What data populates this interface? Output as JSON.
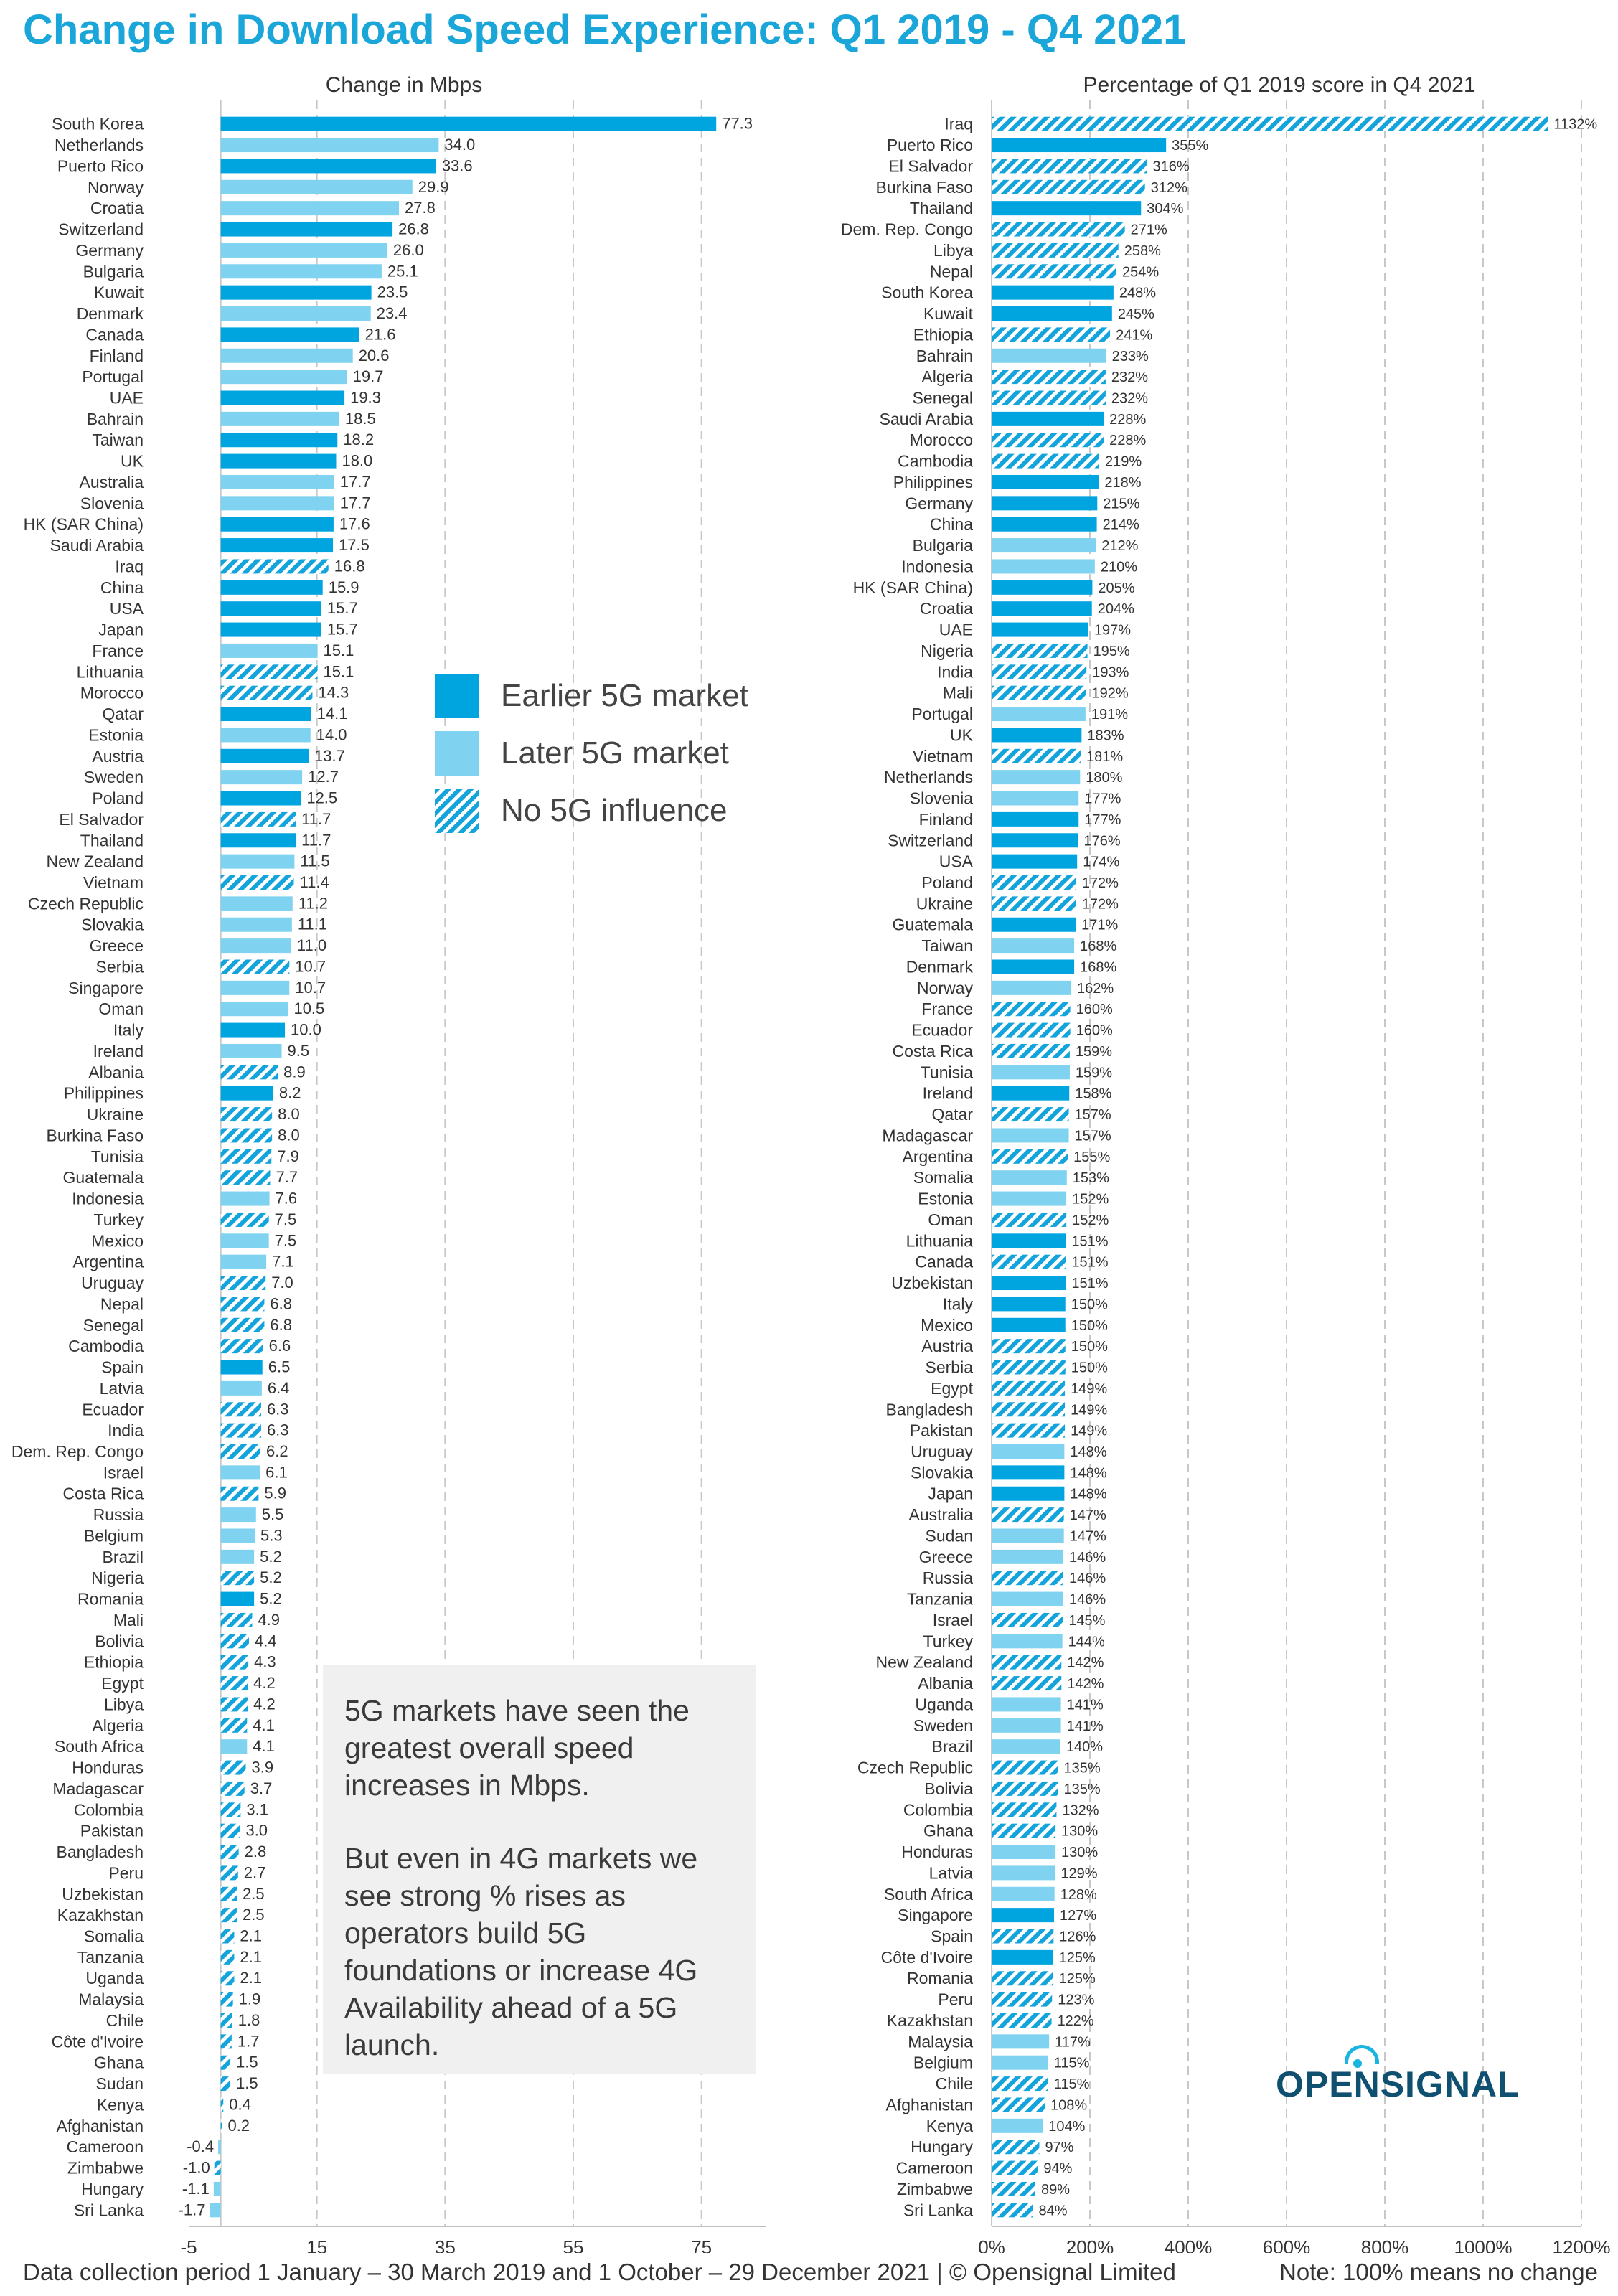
{
  "title": "Change in Download Speed Experience: Q1 2019 - Q4 2021",
  "footer_left": "Data collection period 1 January – 30 March 2019 and 1 October – 29 December 2021 | © Opensignal Limited",
  "footer_right": "Note: 100% means no change",
  "logo_text": "OPENSIGNAL",
  "legend": [
    {
      "key": "E",
      "label": "Earlier 5G market"
    },
    {
      "key": "L",
      "label": "Later 5G market"
    },
    {
      "key": "N",
      "label": "No 5G influence"
    }
  ],
  "colors": {
    "E": "#00a5e0",
    "L": "#7fd3f0",
    "N": "#14a4dc",
    "grid": "#c8c8c8",
    "note_box": "#f0f0f0"
  },
  "note": [
    "5G markets have seen the greatest overall speed increases in Mbps.",
    "But even in 4G markets we see strong % rises as operators build 5G foundations or increase 4G Availability ahead of a 5G launch."
  ],
  "chart_data": [
    {
      "type": "bar",
      "orientation": "horizontal",
      "title": "Change in Mbps",
      "xlim": [
        -5,
        85
      ],
      "ticks": [
        -5,
        15,
        35,
        55,
        75
      ],
      "tick_labels": [
        "-5",
        "15",
        "35",
        "55",
        "75"
      ],
      "grid": true,
      "categories": [
        "South Korea",
        "Netherlands",
        "Puerto Rico",
        "Norway",
        "Croatia",
        "Switzerland",
        "Germany",
        "Bulgaria",
        "Kuwait",
        "Denmark",
        "Canada",
        "Finland",
        "Portugal",
        "UAE",
        "Bahrain",
        "Taiwan",
        "UK",
        "Australia",
        "Slovenia",
        "HK (SAR China)",
        "Saudi Arabia",
        "Iraq",
        "China",
        "USA",
        "Japan",
        "France",
        "Lithuania",
        "Morocco",
        "Qatar",
        "Estonia",
        "Austria",
        "Sweden",
        "Poland",
        "El Salvador",
        "Thailand",
        "New Zealand",
        "Vietnam",
        "Czech Republic",
        "Slovakia",
        "Greece",
        "Serbia",
        "Singapore",
        "Oman",
        "Italy",
        "Ireland",
        "Albania",
        "Philippines",
        "Ukraine",
        "Burkina Faso",
        "Tunisia",
        "Guatemala",
        "Indonesia",
        "Turkey",
        "Mexico",
        "Argentina",
        "Uruguay",
        "Nepal",
        "Senegal",
        "Cambodia",
        "Spain",
        "Latvia",
        "Ecuador",
        "India",
        "Dem. Rep. Congo",
        "Israel",
        "Costa Rica",
        "Russia",
        "Belgium",
        "Brazil",
        "Nigeria",
        "Romania",
        "Mali",
        "Bolivia",
        "Ethiopia",
        "Egypt",
        "Libya",
        "Algeria",
        "South Africa",
        "Honduras",
        "Madagascar",
        "Colombia",
        "Pakistan",
        "Bangladesh",
        "Peru",
        "Uzbekistan",
        "Kazakhstan",
        "Somalia",
        "Tanzania",
        "Uganda",
        "Malaysia",
        "Chile",
        "Côte d'Ivoire",
        "Ghana",
        "Sudan",
        "Kenya",
        "Afghanistan",
        "Cameroon",
        "Zimbabwe",
        "Hungary",
        "Sri Lanka"
      ],
      "values": [
        77.3,
        34.0,
        33.6,
        29.9,
        27.8,
        26.8,
        26.0,
        25.1,
        23.5,
        23.4,
        21.6,
        20.6,
        19.7,
        19.3,
        18.5,
        18.2,
        18.0,
        17.7,
        17.7,
        17.6,
        17.5,
        16.8,
        15.9,
        15.7,
        15.7,
        15.1,
        15.1,
        14.3,
        14.1,
        14.0,
        13.7,
        12.7,
        12.5,
        11.7,
        11.7,
        11.5,
        11.4,
        11.2,
        11.1,
        11.0,
        10.7,
        10.7,
        10.5,
        10.0,
        9.5,
        8.9,
        8.2,
        8.0,
        8.0,
        7.9,
        7.7,
        7.6,
        7.5,
        7.5,
        7.1,
        7.0,
        6.8,
        6.8,
        6.6,
        6.5,
        6.4,
        6.3,
        6.3,
        6.2,
        6.1,
        5.9,
        5.5,
        5.3,
        5.2,
        5.2,
        5.2,
        4.9,
        4.4,
        4.3,
        4.2,
        4.2,
        4.1,
        4.1,
        3.9,
        3.7,
        3.1,
        3.0,
        2.8,
        2.7,
        2.5,
        2.5,
        2.1,
        2.1,
        2.1,
        1.9,
        1.8,
        1.7,
        1.5,
        1.5,
        0.4,
        0.2,
        -0.4,
        -1.0,
        -1.1,
        -1.7
      ],
      "labels": [
        "77.3",
        "34.0",
        "33.6",
        "29.9",
        "27.8",
        "26.8",
        "26.0",
        "25.1",
        "23.5",
        "23.4",
        "21.6",
        "20.6",
        "19.7",
        "19.3",
        "18.5",
        "18.2",
        "18.0",
        "17.7",
        "17.7",
        "17.6",
        "17.5",
        "16.8",
        "15.9",
        "15.7",
        "15.7",
        "15.1",
        "15.1",
        "14.3",
        "14.1",
        "14.0",
        "13.7",
        "12.7",
        "12.5",
        "11.7",
        "11.7",
        "11.5",
        "11.4",
        "11.2",
        "11.1",
        "11.0",
        "10.7",
        "10.7",
        "10.5",
        "10.0",
        "9.5",
        "8.9",
        "8.2",
        "8.0",
        "8.0",
        "7.9",
        "7.7",
        "7.6",
        "7.5",
        "7.5",
        "7.1",
        "7.0",
        "6.8",
        "6.8",
        "6.6",
        "6.5",
        "6.4",
        "6.3",
        "6.3",
        "6.2",
        "6.1",
        "5.9",
        "5.5",
        "5.3",
        "5.2",
        "5.2",
        "5.2",
        "4.9",
        "4.4",
        "4.3",
        "4.2",
        "4.2",
        "4.1",
        "4.1",
        "3.9",
        "3.7",
        "3.1",
        "3.0",
        "2.8",
        "2.7",
        "2.5",
        "2.5",
        "2.1",
        "2.1",
        "2.1",
        "1.9",
        "1.8",
        "1.7",
        "1.5",
        "1.5",
        "0.4",
        "0.2",
        "-0.4",
        "-1.0",
        "-1.1",
        "-1.7"
      ],
      "market_type": "ELELLELLELELLELEELLEENEEELNNELELENELNLLLNLLELNENNNNLNLLNNNNELNNNLNLLLNENNNNNNLNNNNNNNNNNNNNNNNNNLNLL"
    },
    {
      "type": "bar",
      "orientation": "horizontal",
      "title": "Percentage of Q1 2019 score in Q4 2021",
      "xlim": [
        0,
        1200
      ],
      "ticks": [
        0,
        200,
        400,
        600,
        800,
        1000,
        1200
      ],
      "tick_labels": [
        "0%",
        "200%",
        "400%",
        "600%",
        "800%",
        "1000%",
        "1200%"
      ],
      "grid": true,
      "categories": [
        "Iraq",
        "Puerto Rico",
        "El Salvador",
        "Burkina Faso",
        "Thailand",
        "Dem. Rep. Congo",
        "Libya",
        "Nepal",
        "South Korea",
        "Kuwait",
        "Ethiopia",
        "Bahrain",
        "Algeria",
        "Senegal",
        "Saudi Arabia",
        "Morocco",
        "Cambodia",
        "Philippines",
        "Germany",
        "China",
        "Bulgaria",
        "Indonesia",
        "HK (SAR China)",
        "Croatia",
        "UAE",
        "Nigeria",
        "India",
        "Mali",
        "Portugal",
        "UK",
        "Vietnam",
        "Netherlands",
        "Slovenia",
        "Finland",
        "Switzerland",
        "USA",
        "Poland",
        "Ukraine",
        "Guatemala",
        "Taiwan",
        "Denmark",
        "Norway",
        "France",
        "Ecuador",
        "Costa Rica",
        "Tunisia",
        "Ireland",
        "Qatar",
        "Madagascar",
        "Argentina",
        "Somalia",
        "Estonia",
        "Oman",
        "Lithuania",
        "Canada",
        "Uzbekistan",
        "Italy",
        "Mexico",
        "Austria",
        "Serbia",
        "Egypt",
        "Bangladesh",
        "Pakistan",
        "Uruguay",
        "Slovakia",
        "Japan",
        "Australia",
        "Sudan",
        "Greece",
        "Russia",
        "Tanzania",
        "Israel",
        "Turkey",
        "New Zealand",
        "Albania",
        "Uganda",
        "Sweden",
        "Brazil",
        "Czech Republic",
        "Bolivia",
        "Colombia",
        "Ghana",
        "Honduras",
        "Latvia",
        "South Africa",
        "Singapore",
        "Spain",
        "Côte d'Ivoire",
        "Romania",
        "Peru",
        "Kazakhstan",
        "Malaysia",
        "Belgium",
        "Chile",
        "Afghanistan",
        "Kenya",
        "Hungary",
        "Cameroon",
        "Zimbabwe",
        "Sri Lanka"
      ],
      "values": [
        1132,
        355,
        316,
        312,
        304,
        271,
        258,
        254,
        248,
        245,
        241,
        233,
        232,
        232,
        228,
        228,
        219,
        218,
        215,
        214,
        212,
        210,
        205,
        204,
        197,
        195,
        193,
        192,
        191,
        183,
        181,
        180,
        177,
        177,
        176,
        174,
        172,
        172,
        171,
        168,
        168,
        162,
        160,
        160,
        159,
        159,
        158,
        157,
        157,
        155,
        153,
        152,
        152,
        151,
        151,
        151,
        150,
        150,
        150,
        150,
        149,
        149,
        149,
        148,
        148,
        148,
        147,
        147,
        146,
        146,
        146,
        145,
        144,
        142,
        142,
        141,
        141,
        140,
        135,
        135,
        132,
        130,
        130,
        129,
        128,
        127,
        126,
        125,
        125,
        123,
        122,
        117,
        115,
        115,
        108,
        104,
        97,
        94,
        89,
        84
      ],
      "labels": [
        "1132%",
        "355%",
        "316%",
        "312%",
        "304%",
        "271%",
        "258%",
        "254%",
        "248%",
        "245%",
        "241%",
        "233%",
        "232%",
        "232%",
        "228%",
        "228%",
        "219%",
        "218%",
        "215%",
        "214%",
        "212%",
        "210%",
        "205%",
        "204%",
        "197%",
        "195%",
        "193%",
        "192%",
        "191%",
        "183%",
        "181%",
        "180%",
        "177%",
        "177%",
        "176%",
        "174%",
        "172%",
        "172%",
        "171%",
        "168%",
        "168%",
        "162%",
        "160%",
        "160%",
        "159%",
        "159%",
        "158%",
        "157%",
        "157%",
        "155%",
        "153%",
        "152%",
        "152%",
        "151%",
        "151%",
        "151%",
        "150%",
        "150%",
        "150%",
        "150%",
        "149%",
        "149%",
        "149%",
        "148%",
        "148%",
        "148%",
        "147%",
        "147%",
        "146%",
        "146%",
        "146%",
        "145%",
        "144%",
        "142%",
        "142%",
        "141%",
        "141%",
        "140%",
        "135%",
        "135%",
        "132%",
        "130%",
        "130%",
        "129%",
        "128%",
        "127%",
        "126%",
        "125%",
        "125%",
        "123%",
        "122%",
        "117%",
        "115%",
        "115%",
        "108%",
        "104%",
        "97%",
        "94%",
        "89%",
        "84%"
      ],
      "market_type": "NENNENNNEENLNNENNEEELLEEENNNLENLLEEENNELELNNNLENLNLLNENEEENNNNNLEENLLNLNLNNLLLNNNNLLLENENNNLLNNLNNN"
    }
  ]
}
